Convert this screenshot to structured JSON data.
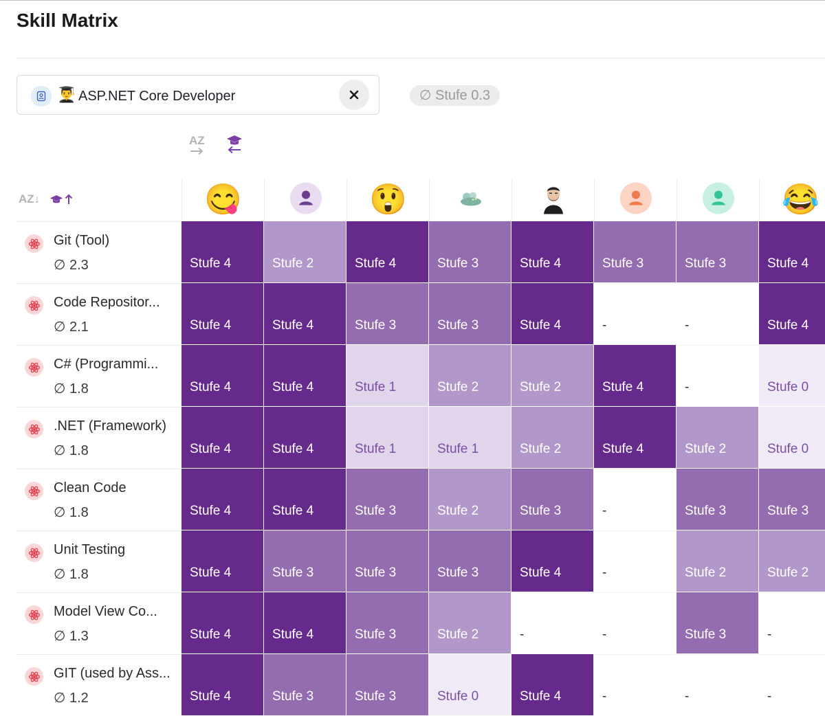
{
  "page": {
    "title": "Skill Matrix"
  },
  "role_filter": {
    "emoji": "👨‍🎓",
    "label": "ASP.NET Core Developer",
    "close_symbol": "✕"
  },
  "average_badge": "∅ Stufe 0.3",
  "sort": {
    "az_label": "AZ",
    "az_row_label": "AZ↓"
  },
  "colors": {
    "level_4": "#652a8c",
    "level_3": "#946cb0",
    "level_2": "#b197ca",
    "level_1": "#e0d5eb",
    "level_0": "#efeaf5",
    "accent": "#7b3fa6",
    "skill_badge": "#f9d7d9"
  },
  "people": [
    {
      "avatar": "😋",
      "kind": "emoji"
    },
    {
      "avatar": "person-icon",
      "kind": "person",
      "bg": "#e9dcf1",
      "fg": "#6a3d8f"
    },
    {
      "avatar": "😲",
      "kind": "emoji"
    },
    {
      "avatar": "landscape-photo",
      "kind": "photo"
    },
    {
      "avatar": "bearded-man-photo",
      "kind": "photo"
    },
    {
      "avatar": "person-icon",
      "kind": "person",
      "bg": "#fdd3c3",
      "fg": "#f07b4e"
    },
    {
      "avatar": "person-icon",
      "kind": "person",
      "bg": "#c7f0e2",
      "fg": "#35c49a"
    },
    {
      "avatar": "😂",
      "kind": "emoji"
    }
  ],
  "skills": [
    {
      "name": "Git (Tool)",
      "avg": "∅ 2.3",
      "levels": [
        "Stufe 4",
        "Stufe 2",
        "Stufe 4",
        "Stufe 3",
        "Stufe 4",
        "Stufe 3",
        "Stufe 3",
        "Stufe 4"
      ]
    },
    {
      "name": "Code Repositor...",
      "avg": "∅ 2.1",
      "levels": [
        "Stufe 4",
        "Stufe 4",
        "Stufe 3",
        "Stufe 3",
        "Stufe 4",
        "-",
        "-",
        "Stufe 4"
      ]
    },
    {
      "name": "C# (Programmi...",
      "avg": "∅ 1.8",
      "levels": [
        "Stufe 4",
        "Stufe 4",
        "Stufe 1",
        "Stufe 2",
        "Stufe 2",
        "Stufe 4",
        "-",
        "Stufe 0"
      ]
    },
    {
      "name": ".NET (Framework)",
      "avg": "∅ 1.8",
      "levels": [
        "Stufe 4",
        "Stufe 4",
        "Stufe 1",
        "Stufe 1",
        "Stufe 2",
        "Stufe 4",
        "Stufe 2",
        "Stufe 0"
      ]
    },
    {
      "name": "Clean Code",
      "avg": "∅ 1.8",
      "levels": [
        "Stufe 4",
        "Stufe 4",
        "Stufe 3",
        "Stufe 2",
        "Stufe 3",
        "-",
        "Stufe 3",
        "Stufe 3"
      ]
    },
    {
      "name": "Unit Testing",
      "avg": "∅ 1.8",
      "levels": [
        "Stufe 4",
        "Stufe 3",
        "Stufe 3",
        "Stufe 3",
        "Stufe 4",
        "-",
        "Stufe 2",
        "Stufe 2"
      ]
    },
    {
      "name": "Model View Co...",
      "avg": "∅ 1.3",
      "levels": [
        "Stufe 4",
        "Stufe 4",
        "Stufe 3",
        "Stufe 2",
        "-",
        "-",
        "Stufe 3",
        "-"
      ]
    },
    {
      "name": "GIT (used by Ass...",
      "avg": "∅ 1.2",
      "levels": [
        "Stufe 4",
        "Stufe 3",
        "Stufe 3",
        "Stufe 0",
        "Stufe 4",
        "-",
        "-",
        "-"
      ]
    }
  ]
}
